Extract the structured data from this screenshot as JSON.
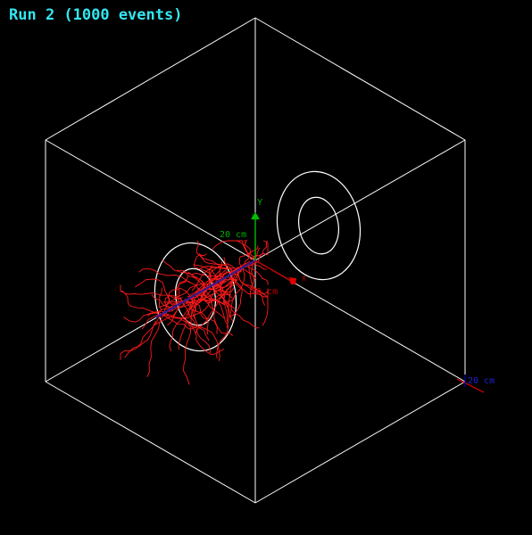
{
  "title": "Run 2 (1000 events)",
  "axes": {
    "y": {
      "label": "Y",
      "scale_label": "20 cm",
      "color": "#00b000"
    },
    "x": {
      "label": "X",
      "scale_label": "20 cm",
      "color": "#c00000"
    },
    "z": {
      "label": "Z",
      "scale_label": "20 cm",
      "color": "#0000b0"
    }
  },
  "colors": {
    "background": "#000000",
    "title": "#33e6f0",
    "geometry": "#ffffff",
    "tracks": "#ff1a1a",
    "hits": "#3b1a8c"
  }
}
